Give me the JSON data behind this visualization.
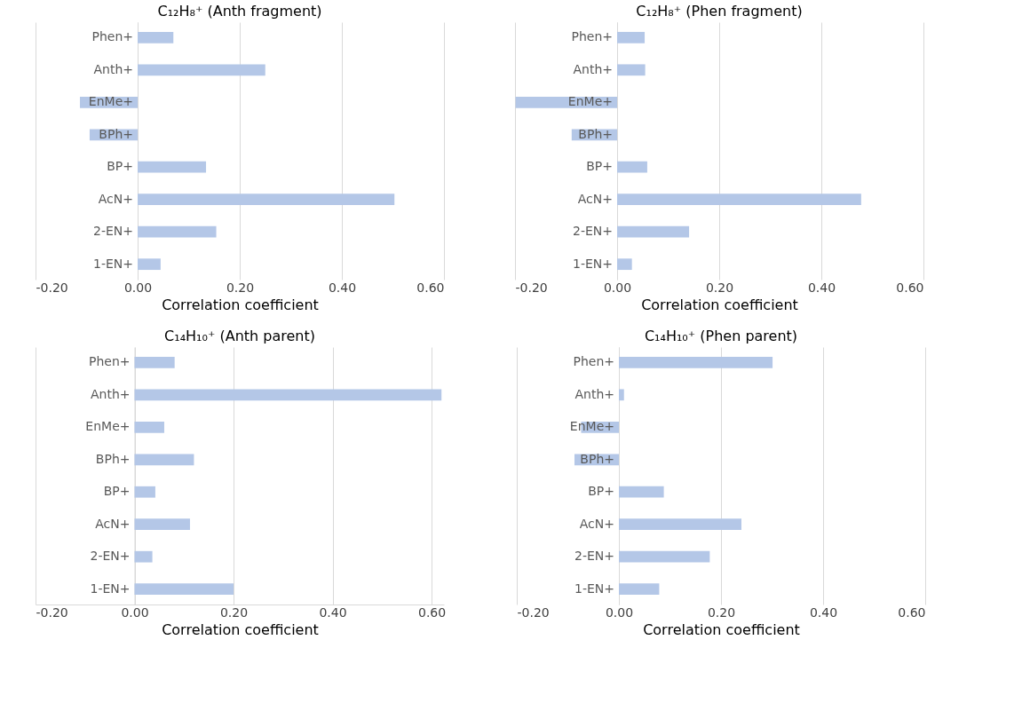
{
  "chart_data": [
    {
      "type": "bar",
      "orientation": "horizontal",
      "title": "C₁₂H₈⁺ (Anth fragment)",
      "xlabel": "Correlation coefficient",
      "categories": [
        "Phen+",
        "Anth+",
        "EnMe+",
        "BPh+",
        "BP+",
        "AcN+",
        "2-EN+",
        "1-EN+"
      ],
      "values": [
        0.07,
        0.25,
        -0.113,
        -0.094,
        0.134,
        0.503,
        0.154,
        0.045
      ],
      "color": "#b4c7e7",
      "xlim": [
        -0.2,
        0.6
      ],
      "xticks": [
        {
          "value": -0.2,
          "label": "-0.20"
        },
        {
          "value": 0,
          "label": "0.00"
        },
        {
          "value": 0.2,
          "label": "0.20"
        },
        {
          "value": 0.4,
          "label": "0.40"
        },
        {
          "value": 0.6,
          "label": "0.60"
        }
      ],
      "grid": "x"
    },
    {
      "type": "bar",
      "orientation": "horizontal",
      "title": "C₁₂H₈⁺ (Phen fragment)",
      "xlabel": "Correlation coefficient",
      "categories": [
        "Phen+",
        "Anth+",
        "EnMe+",
        "BPh+",
        "BP+",
        "AcN+",
        "2-EN+",
        "1-EN+"
      ],
      "values": [
        0.054,
        0.055,
        -0.199,
        -0.089,
        0.059,
        0.478,
        0.141,
        0.029
      ],
      "color": "#b4c7e7",
      "xlim": [
        -0.2,
        0.6
      ],
      "xticks": [
        {
          "value": -0.2,
          "label": "-0.20"
        },
        {
          "value": 0,
          "label": "0.00"
        },
        {
          "value": 0.2,
          "label": "0.20"
        },
        {
          "value": 0.4,
          "label": "0.40"
        },
        {
          "value": 0.6,
          "label": "0.60"
        }
      ],
      "grid": "x"
    },
    {
      "type": "bar",
      "orientation": "horizontal",
      "title": "C₁₄H₁₀⁺ (Anth parent)",
      "xlabel": "Correlation coefficient",
      "categories": [
        "Phen+",
        "Anth+",
        "EnMe+",
        "BPh+",
        "BP+",
        "AcN+",
        "2-EN+",
        "1-EN+"
      ],
      "values": [
        0.081,
        0.62,
        0.06,
        0.12,
        0.042,
        0.112,
        0.036,
        0.2
      ],
      "color": "#b4c7e7",
      "xlim": [
        -0.2,
        0.625
      ],
      "xticks": [
        {
          "value": -0.2,
          "label": "-0.20"
        },
        {
          "value": 0,
          "label": "0.00"
        },
        {
          "value": 0.2,
          "label": "0.20"
        },
        {
          "value": 0.4,
          "label": "0.40"
        },
        {
          "value": 0.6,
          "label": "0.60"
        }
      ],
      "grid": "x"
    },
    {
      "type": "bar",
      "orientation": "horizontal",
      "title": "C₁₄H₁₀⁺ (Phen parent)",
      "xlabel": "Correlation coefficient",
      "categories": [
        "Phen+",
        "Anth+",
        "EnMe+",
        "BPh+",
        "BP+",
        "AcN+",
        "2-EN+",
        "1-EN+"
      ],
      "values": [
        0.301,
        0.01,
        -0.074,
        -0.087,
        0.088,
        0.24,
        0.178,
        0.079
      ],
      "color": "#b4c7e7",
      "xlim": [
        -0.2,
        0.6
      ],
      "xticks": [
        {
          "value": -0.2,
          "label": "-0.20"
        },
        {
          "value": 0,
          "label": "0.00"
        },
        {
          "value": 0.2,
          "label": "0.20"
        },
        {
          "value": 0.4,
          "label": "0.40"
        },
        {
          "value": 0.6,
          "label": "0.60"
        }
      ],
      "grid": "x"
    }
  ]
}
